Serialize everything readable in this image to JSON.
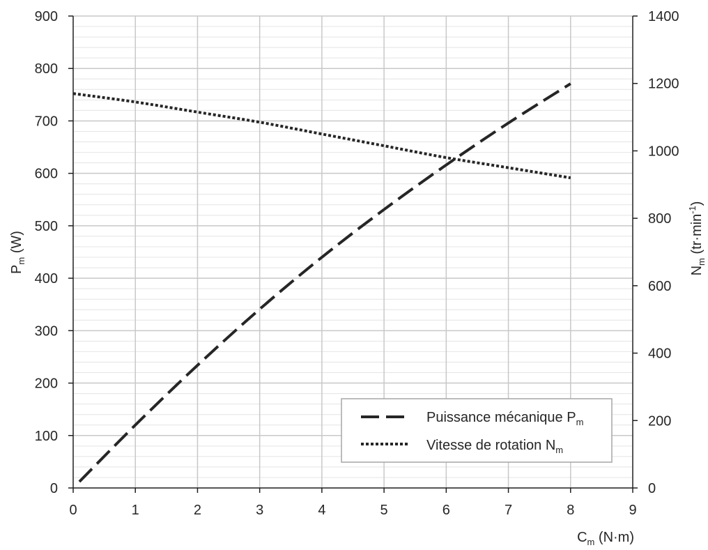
{
  "chart_data": {
    "type": "line",
    "x_axis": {
      "label": {
        "main": "C",
        "sub": "m",
        "suffix": " (N·m)"
      },
      "range": [
        0,
        9
      ],
      "ticks": [
        0,
        1,
        2,
        3,
        4,
        5,
        6,
        7,
        8,
        9
      ]
    },
    "y_axis_left": {
      "label": {
        "main": "P",
        "sub": "m",
        "suffix": " (W)"
      },
      "range": [
        0,
        900
      ],
      "ticks": [
        0,
        100,
        200,
        300,
        400,
        500,
        600,
        700,
        800,
        900
      ]
    },
    "y_axis_right": {
      "label": {
        "main": "N",
        "sub": "m",
        "suffix": " (tr·min",
        "sup": "-1",
        "end": ")"
      },
      "range": [
        0,
        1400
      ],
      "ticks": [
        0,
        200,
        400,
        600,
        800,
        1000,
        1200,
        1400
      ]
    },
    "series": [
      {
        "label": "Puissance mécanique P",
        "label_sub": "m",
        "axis": "left",
        "line_style": "dashed",
        "color": "#262626",
        "x": [
          0.1,
          1,
          2,
          3,
          4,
          5,
          6,
          7,
          8
        ],
        "y": [
          12,
          120,
          234,
          341,
          440,
          531,
          616,
          696,
          771
        ]
      },
      {
        "label": "Vitesse de rotation N",
        "label_sub": "m",
        "axis": "right",
        "line_style": "dotted",
        "color": "#262626",
        "x": [
          0,
          1,
          2,
          3,
          4,
          5,
          6,
          7,
          8
        ],
        "y": [
          1170,
          1145,
          1115,
          1085,
          1050,
          1015,
          980,
          950,
          920
        ]
      }
    ],
    "grid": {
      "major": true,
      "minor_y_step": 20
    },
    "legend_position": "bottom-right"
  }
}
